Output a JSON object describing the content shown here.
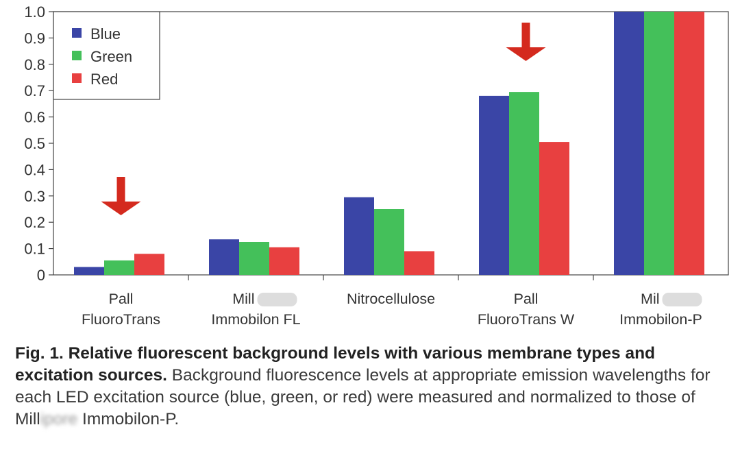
{
  "chart_data": {
    "type": "bar",
    "categories": [
      [
        "Pall",
        "FluoroTrans"
      ],
      [
        "Mill",
        "Immobilon FL"
      ],
      [
        "Nitrocellulose"
      ],
      [
        "Pall",
        "FluoroTrans W"
      ],
      [
        "Mil",
        "Immobilon-P"
      ]
    ],
    "series": [
      {
        "name": "Blue",
        "color": "#3a45a6",
        "values": [
          0.03,
          0.135,
          0.295,
          0.68,
          1.0
        ]
      },
      {
        "name": "Green",
        "color": "#44c05a",
        "values": [
          0.055,
          0.125,
          0.25,
          0.695,
          1.0
        ]
      },
      {
        "name": "Red",
        "color": "#e84040",
        "values": [
          0.08,
          0.105,
          0.09,
          0.505,
          1.0
        ]
      }
    ],
    "ylim": [
      0,
      1.0
    ],
    "yticks": [
      "0",
      "0.1",
      "0.2",
      "0.3",
      "0.4",
      "0.5",
      "0.6",
      "0.7",
      "0.8",
      "0.9",
      "1.0"
    ],
    "legend": "top-left",
    "annotations": [
      {
        "type": "arrow-down",
        "category_index": 0,
        "color": "#d42a1e"
      },
      {
        "type": "arrow-down",
        "category_index": 3,
        "color": "#d42a1e"
      }
    ]
  },
  "caption": {
    "bold": "Fig. 1. Relative fluorescent background levels with various membrane types and excitation sources.",
    "text_before_blur": " Background fluorescence levels at appropriate emission wavelengths for each LED excitation source (blue, green, or red) were measured and normalized to those of Mill",
    "blurred": "ipore",
    "text_after_blur": " Immobilon-P."
  }
}
